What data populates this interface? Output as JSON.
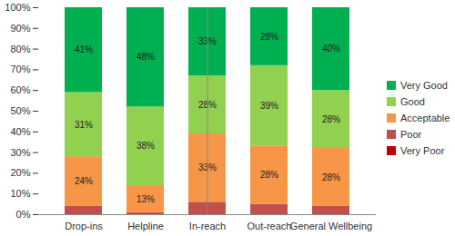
{
  "chart_data": {
    "type": "bar",
    "stacked": true,
    "categories": [
      "Drop-ins",
      "Helpline",
      "In-reach",
      "Out-reach",
      "General Wellbeing"
    ],
    "ylim": [
      0,
      100
    ],
    "yticks": [
      {
        "value": 0,
        "label": "0%"
      },
      {
        "value": 10,
        "label": "10%"
      },
      {
        "value": 20,
        "label": "20%"
      },
      {
        "value": 30,
        "label": "30%"
      },
      {
        "value": 40,
        "label": "40%"
      },
      {
        "value": 50,
        "label": "50%"
      },
      {
        "value": 60,
        "label": "60%"
      },
      {
        "value": 70,
        "label": "70%"
      },
      {
        "value": 80,
        "label": "80%"
      },
      {
        "value": 90,
        "label": "90%"
      },
      {
        "value": 100,
        "label": "100%"
      }
    ],
    "legend": "right",
    "data_labels": true,
    "series": [
      {
        "name": "Very Poor",
        "color": "#c00000",
        "values": [
          0,
          0,
          0,
          0,
          0
        ],
        "data_labels": false
      },
      {
        "name": "Poor",
        "color": "#c0504d",
        "values": [
          4,
          1,
          6,
          5,
          4
        ],
        "data_labels": false
      },
      {
        "name": "Acceptable",
        "color": "#f79646",
        "values": [
          24,
          13,
          33,
          28,
          28
        ],
        "value_labels": [
          "24%",
          "13%",
          "33%",
          "28%",
          "28%"
        ]
      },
      {
        "name": "Good",
        "color": "#92d050",
        "values": [
          31,
          38,
          28,
          39,
          28
        ],
        "value_labels": [
          "31%",
          "38%",
          "28%",
          "39%",
          "28%"
        ]
      },
      {
        "name": "Very Good",
        "color": "#00b050",
        "values": [
          41,
          48,
          33,
          28,
          40
        ],
        "value_labels": [
          "41%",
          "48%",
          "33%",
          "28%",
          "40%"
        ]
      }
    ]
  }
}
